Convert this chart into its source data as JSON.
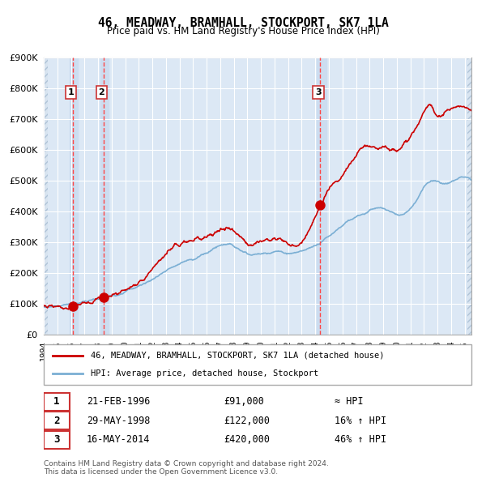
{
  "title": "46, MEADWAY, BRAMHALL, STOCKPORT, SK7 1LA",
  "subtitle": "Price paid vs. HM Land Registry's House Price Index (HPI)",
  "ylim": [
    0,
    900000
  ],
  "yticks": [
    0,
    100000,
    200000,
    300000,
    400000,
    500000,
    600000,
    700000,
    800000,
    900000
  ],
  "ytick_labels": [
    "£0",
    "£100K",
    "£200K",
    "£300K",
    "£400K",
    "£500K",
    "£600K",
    "£700K",
    "£800K",
    "£900K"
  ],
  "xlim_start": 1994.0,
  "xlim_end": 2025.5,
  "xtick_years": [
    1994,
    1995,
    1996,
    1997,
    1998,
    1999,
    2000,
    2001,
    2002,
    2003,
    2004,
    2005,
    2006,
    2007,
    2008,
    2009,
    2010,
    2011,
    2012,
    2013,
    2014,
    2015,
    2016,
    2017,
    2018,
    2019,
    2020,
    2021,
    2022,
    2023,
    2024,
    2025
  ],
  "hpi_color": "#7bafd4",
  "price_color": "#cc0000",
  "bg_color": "#e8f0f8",
  "plot_bg": "#dce8f5",
  "grid_color": "#ffffff",
  "sale_dates": [
    1996.13,
    1998.41,
    2014.37
  ],
  "sale_prices": [
    91000,
    122000,
    420000
  ],
  "sale_labels": [
    "1",
    "2",
    "3"
  ],
  "vline_color": "#ff4444",
  "highlight_fills": [
    {
      "x_start": 1995.9,
      "x_end": 1996.5,
      "color": "#ccddf0"
    },
    {
      "x_start": 1998.2,
      "x_end": 1998.8,
      "color": "#ccddf0"
    },
    {
      "x_start": 2014.1,
      "x_end": 2014.8,
      "color": "#ccddf0"
    }
  ],
  "legend_entry1": "46, MEADWAY, BRAMHALL, STOCKPORT, SK7 1LA (detached house)",
  "legend_entry2": "HPI: Average price, detached house, Stockport",
  "table_rows": [
    [
      "1",
      "21-FEB-1996",
      "£91,000",
      "≈ HPI"
    ],
    [
      "2",
      "29-MAY-1998",
      "£122,000",
      "16% ↑ HPI"
    ],
    [
      "3",
      "16-MAY-2014",
      "£420,000",
      "46% ↑ HPI"
    ]
  ],
  "footnote1": "Contains HM Land Registry data © Crown copyright and database right 2024.",
  "footnote2": "This data is licensed under the Open Government Licence v3.0."
}
